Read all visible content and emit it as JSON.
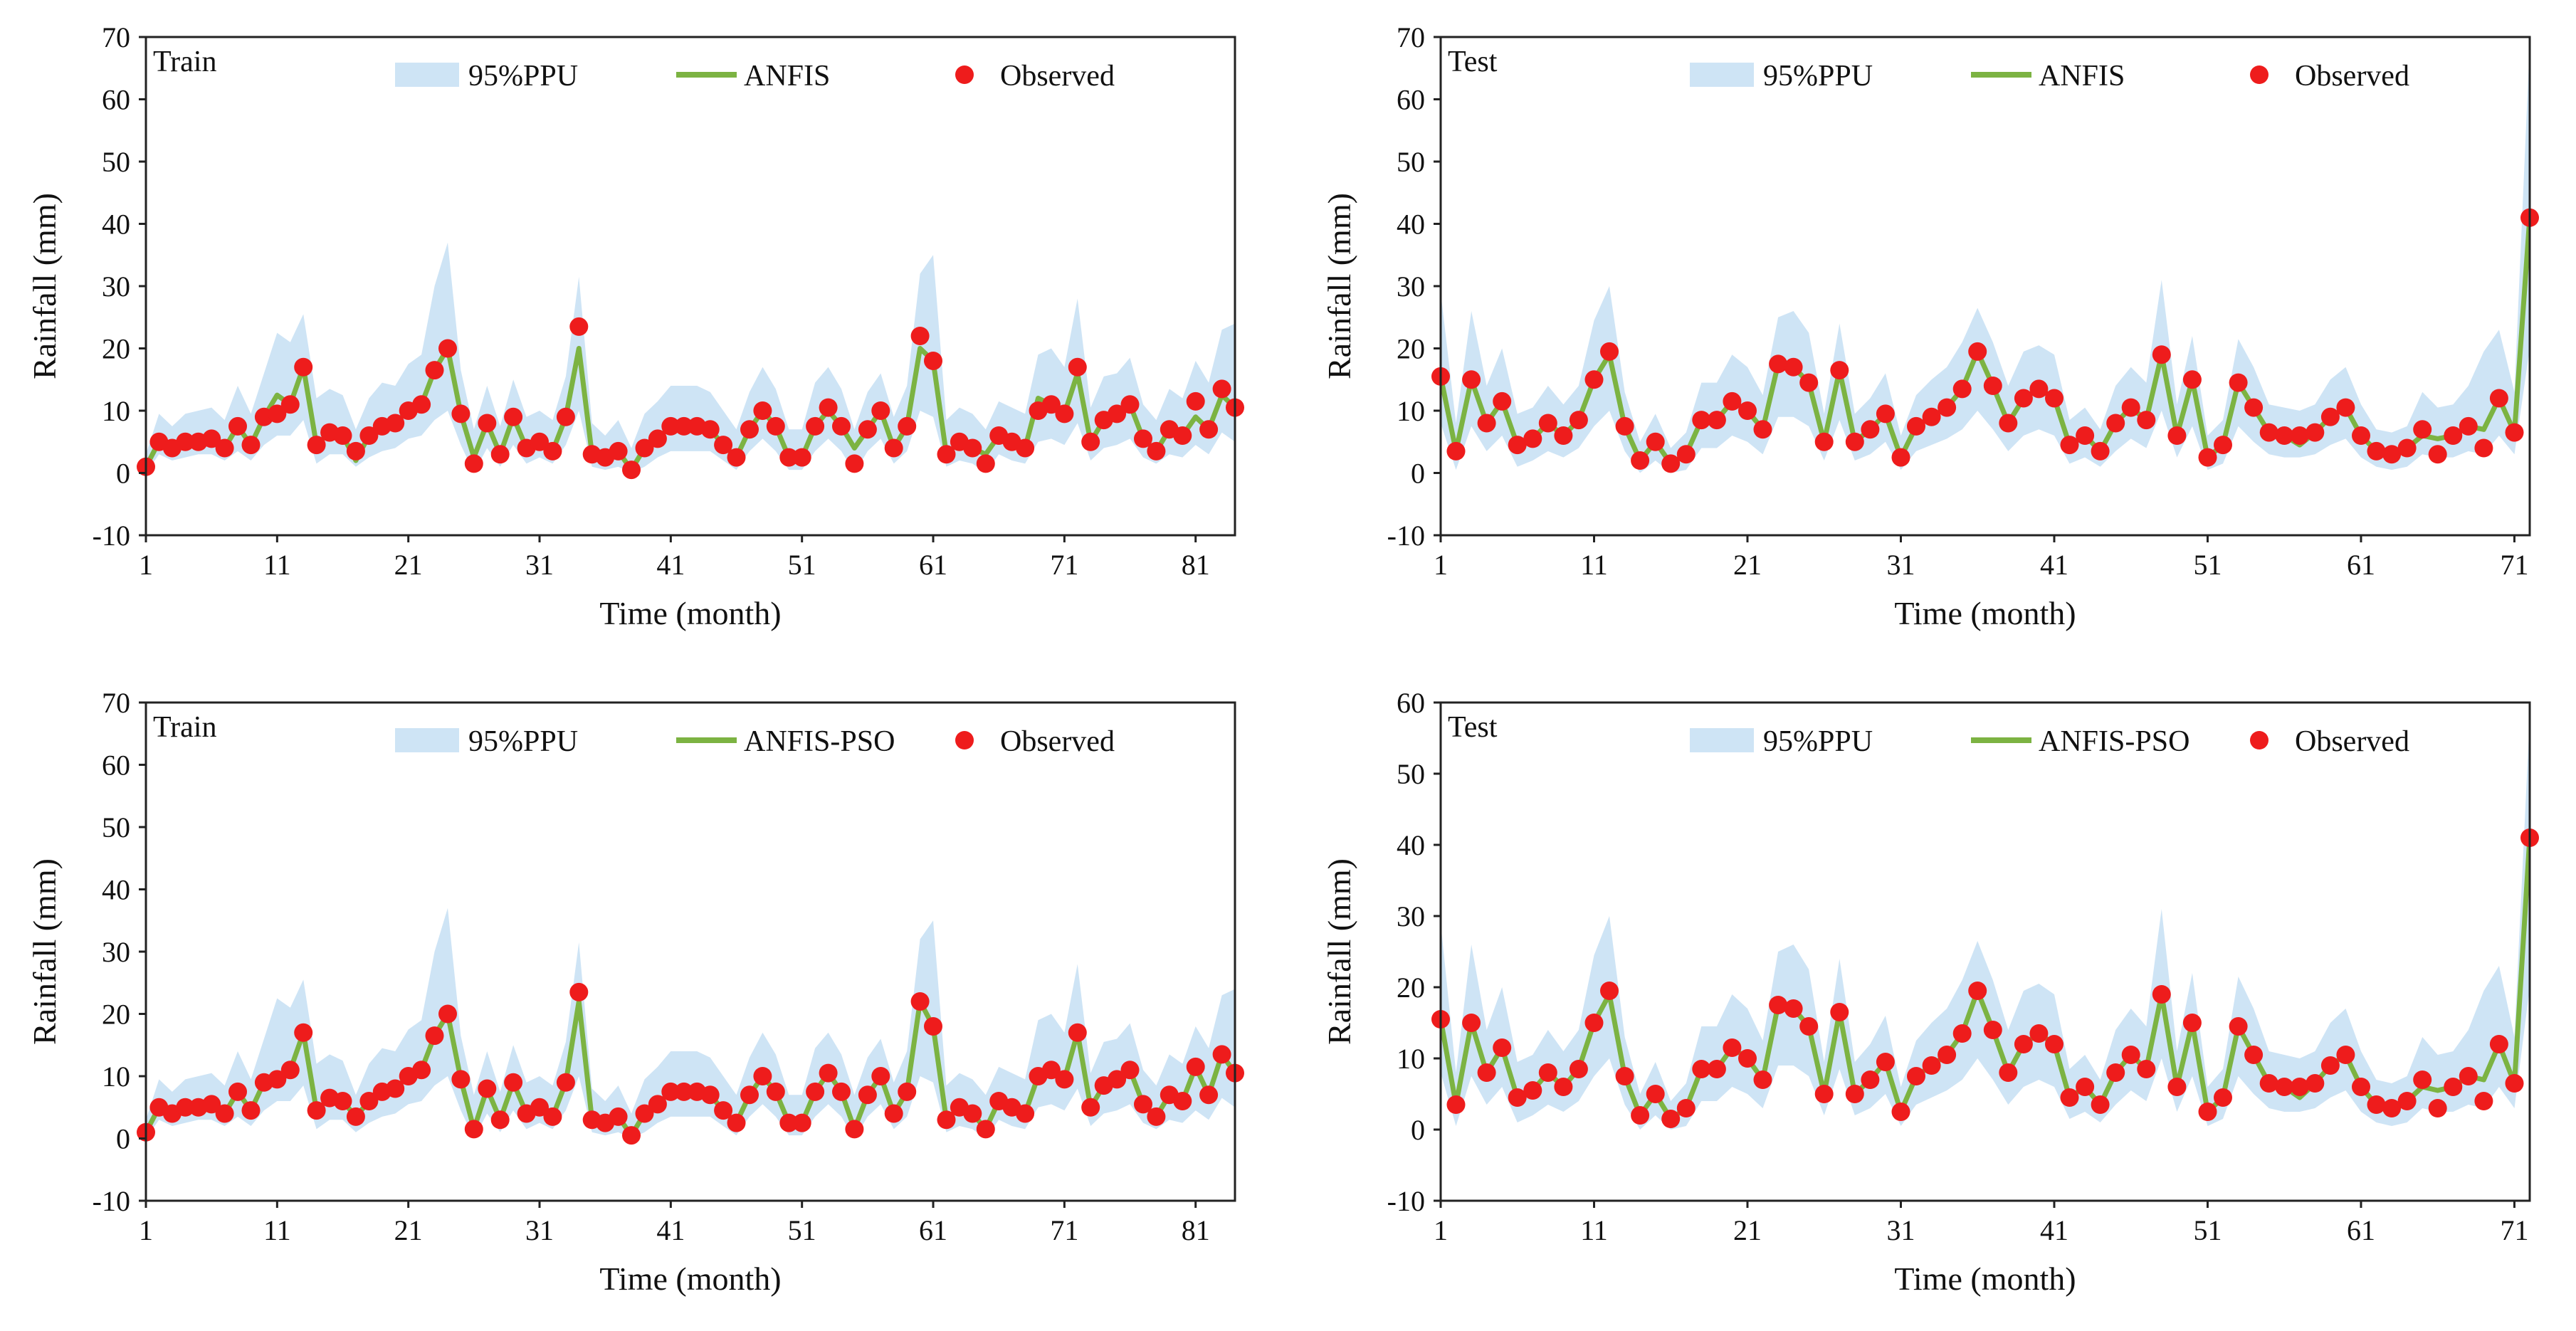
{
  "colors": {
    "band": "#c5dff3",
    "line": "#7cb342",
    "marker": "#ee1c1c",
    "frame": "#222222"
  },
  "chart_data": [
    {
      "type": "line",
      "panel_label": "Train",
      "xlabel": "Time (month)",
      "ylabel": "Rainfall (mm)",
      "ylim": [
        -10,
        70
      ],
      "yticks": [
        -10,
        0,
        10,
        20,
        30,
        40,
        50,
        60,
        70
      ],
      "xlim": [
        1,
        84
      ],
      "xticks": [
        1,
        11,
        21,
        31,
        41,
        51,
        61,
        71,
        81
      ],
      "legend": [
        "95%PPU",
        "ANFIS",
        "Observed"
      ],
      "legend_position": "top-center",
      "x_start": 1,
      "observed": [
        1,
        5,
        4,
        5,
        5,
        5.5,
        4,
        7.5,
        4.5,
        9,
        9.5,
        11,
        17,
        4.5,
        6.5,
        6,
        3.5,
        6,
        7.5,
        8,
        10,
        11,
        16.5,
        20,
        9.5,
        1.5,
        8,
        3,
        9,
        4,
        5,
        3.5,
        9,
        23.5,
        3,
        2.5,
        3.5,
        0.5,
        4,
        5.5,
        7.5,
        7.5,
        7.5,
        7,
        4.5,
        2.5,
        7,
        10,
        7.5,
        2.5,
        2.5,
        7.5,
        10.5,
        7.5,
        1.5,
        7,
        10,
        4,
        7.5,
        22,
        18,
        3,
        5,
        4,
        1.5,
        6,
        5,
        4,
        10,
        11,
        9.5,
        17,
        5,
        8.5,
        9.5,
        11,
        5.5,
        3.5,
        7,
        6,
        11.5,
        7,
        13.5,
        10.5
      ],
      "model": [
        1,
        5,
        4,
        5,
        5,
        5.5,
        4,
        7.5,
        4.5,
        9,
        12.5,
        11,
        17,
        4.5,
        6.5,
        6,
        2,
        6,
        7.5,
        8,
        10,
        11,
        16.5,
        20,
        9.5,
        2.5,
        8,
        3,
        9,
        4,
        5,
        3.5,
        9,
        20,
        3,
        2.5,
        3.5,
        0.5,
        4,
        5.5,
        7.5,
        7.5,
        7.5,
        7,
        4.5,
        2.5,
        7,
        10,
        7.5,
        2.5,
        2.5,
        7.5,
        10,
        7.5,
        4,
        7,
        10,
        4,
        7.5,
        20,
        18,
        3,
        5,
        4,
        3,
        6,
        5,
        4,
        12,
        11,
        9.5,
        16,
        5,
        8.5,
        9.5,
        11,
        5.5,
        3.5,
        7,
        6,
        9,
        7,
        12.5,
        10.5
      ],
      "ppu_lower": [
        0,
        3,
        2,
        2.5,
        3,
        3,
        2,
        3.5,
        2,
        4.5,
        6,
        6,
        8.5,
        1.5,
        3,
        3,
        1,
        2.5,
        3.5,
        4,
        5.5,
        6,
        8.5,
        10,
        4.5,
        0,
        4,
        1,
        4.5,
        1.5,
        2.5,
        1.5,
        4.5,
        10,
        1,
        0.5,
        1,
        0,
        1,
        2.5,
        3.5,
        3.5,
        3.5,
        3.5,
        2,
        0.5,
        3.5,
        5.5,
        3.5,
        0.5,
        0.5,
        3.5,
        5.5,
        3.5,
        0,
        3.5,
        5.5,
        1.5,
        3.5,
        10,
        9,
        1,
        2,
        1.5,
        0,
        3,
        2,
        1.5,
        5,
        5.5,
        4.5,
        8,
        2,
        4,
        4.5,
        5.5,
        2.5,
        1.5,
        3,
        2.5,
        4.5,
        3,
        6.5,
        5
      ],
      "ppu_upper": [
        3,
        9.5,
        7.5,
        9.5,
        10,
        10.5,
        8.5,
        14,
        9.5,
        16,
        22.5,
        21,
        25.5,
        12,
        13.5,
        12.5,
        7,
        12,
        14.5,
        14,
        17.5,
        19,
        30,
        37,
        16.5,
        7,
        14,
        7.5,
        15,
        9,
        10,
        8.5,
        15.5,
        31.5,
        8,
        6,
        8.5,
        4,
        9.5,
        11.5,
        14,
        14,
        14,
        13,
        10,
        7,
        13,
        17,
        13.5,
        7,
        7,
        14.5,
        17,
        13.5,
        7,
        13,
        16,
        9,
        14,
        32,
        35,
        8.5,
        10.5,
        9.5,
        7,
        11.5,
        10.5,
        9.5,
        19,
        20,
        17,
        28,
        10.5,
        15.5,
        16,
        18.5,
        11,
        8.5,
        13.5,
        12,
        18,
        14.5,
        23,
        24
      ]
    },
    {
      "type": "line",
      "panel_label": "Test",
      "xlabel": "Time (month)",
      "ylabel": "Rainfall (mm)",
      "ylim": [
        -10,
        70
      ],
      "yticks": [
        -10,
        0,
        10,
        20,
        30,
        40,
        50,
        60,
        70
      ],
      "xlim": [
        1,
        72
      ],
      "xticks": [
        1,
        11,
        21,
        31,
        41,
        51,
        61,
        71
      ],
      "legend": [
        "95%PPU",
        "ANFIS",
        "Observed"
      ],
      "legend_position": "top-center",
      "x_start": 1,
      "observed": [
        15.5,
        3.5,
        15,
        8,
        11.5,
        4.5,
        5.5,
        8,
        6,
        8.5,
        15,
        19.5,
        7.5,
        2,
        5,
        1.5,
        3,
        8.5,
        8.5,
        11.5,
        10,
        7,
        17.5,
        17,
        14.5,
        5,
        16.5,
        5,
        7,
        9.5,
        2.5,
        7.5,
        9,
        10.5,
        13.5,
        19.5,
        14,
        8,
        12,
        13.5,
        12,
        4.5,
        6,
        3.5,
        8,
        10.5,
        8.5,
        19,
        6,
        15,
        2.5,
        4.5,
        14.5,
        10.5,
        6.5,
        6,
        6,
        6.5,
        9,
        10.5,
        6,
        3.5,
        3,
        4,
        7,
        3,
        6,
        7.5,
        4,
        12,
        6.5,
        41
      ],
      "model": [
        15.5,
        3.5,
        15,
        8,
        11.5,
        4.5,
        5.5,
        8,
        6,
        8.5,
        15,
        19,
        7.5,
        2,
        5,
        1.5,
        3,
        8.5,
        8.5,
        11.5,
        10,
        7,
        17.5,
        17,
        14.5,
        5,
        16.5,
        5,
        7,
        9.5,
        2.5,
        7.5,
        9,
        10.5,
        13.5,
        19.5,
        14,
        8,
        12,
        13.5,
        12,
        4.5,
        6,
        3.5,
        8,
        10.5,
        8.5,
        19,
        6,
        15,
        2.5,
        4.5,
        14.5,
        10.5,
        6.5,
        6,
        4.5,
        6.5,
        9,
        10.5,
        6,
        3.5,
        3,
        4,
        6,
        5.5,
        6,
        7.5,
        7,
        12,
        6.5,
        41
      ],
      "ppu_lower": [
        8,
        0.5,
        7.5,
        3.5,
        6,
        1,
        2,
        3.5,
        2.5,
        4,
        7.5,
        10,
        3.5,
        0,
        2,
        0,
        0.5,
        4,
        4,
        6,
        5,
        3,
        9,
        9,
        7.5,
        2,
        8.5,
        2,
        3,
        5,
        0.5,
        3.5,
        4.5,
        5.5,
        7,
        10,
        7,
        3.5,
        6,
        7,
        6,
        1.5,
        2.5,
        1,
        3.5,
        5.5,
        4,
        10,
        2.5,
        7.5,
        0.5,
        1.5,
        7.5,
        5,
        3,
        2.5,
        2.5,
        3,
        4.5,
        5.5,
        2.5,
        1,
        0.5,
        1,
        3,
        2.5,
        2.5,
        3.5,
        3,
        6,
        3,
        20
      ],
      "ppu_upper": [
        29,
        8,
        26,
        14,
        20,
        9.5,
        10.5,
        14,
        11,
        14,
        24.5,
        30,
        13,
        5,
        9.5,
        4,
        6.5,
        14.5,
        14.5,
        19,
        17,
        12.5,
        25,
        26,
        22.5,
        9.5,
        24,
        9.5,
        12,
        16,
        6,
        12.5,
        15,
        17,
        21,
        26.5,
        21,
        14,
        19.5,
        20.5,
        19,
        8.5,
        10.5,
        7,
        14,
        17,
        14.5,
        31,
        11,
        22,
        6,
        8.5,
        21.5,
        17,
        11,
        10.5,
        10,
        11,
        15,
        17,
        11,
        7,
        6.5,
        7.5,
        13,
        10.5,
        11,
        14,
        19.5,
        23,
        13,
        69
      ]
    },
    {
      "type": "line",
      "panel_label": "Train",
      "xlabel": "Time (month)",
      "ylabel": "Rainfall (mm)",
      "ylim": [
        -10,
        70
      ],
      "yticks": [
        -10,
        0,
        10,
        20,
        30,
        40,
        50,
        60,
        70
      ],
      "xlim": [
        1,
        84
      ],
      "xticks": [
        1,
        11,
        21,
        31,
        41,
        51,
        61,
        71,
        81
      ],
      "legend": [
        "95%PPU",
        "ANFIS-PSO",
        "Observed"
      ],
      "legend_position": "top-center",
      "x_start": 1,
      "observed": [
        1,
        5,
        4,
        5,
        5,
        5.5,
        4,
        7.5,
        4.5,
        9,
        9.5,
        11,
        17,
        4.5,
        6.5,
        6,
        3.5,
        6,
        7.5,
        8,
        10,
        11,
        16.5,
        20,
        9.5,
        1.5,
        8,
        3,
        9,
        4,
        5,
        3.5,
        9,
        23.5,
        3,
        2.5,
        3.5,
        0.5,
        4,
        5.5,
        7.5,
        7.5,
        7.5,
        7,
        4.5,
        2.5,
        7,
        10,
        7.5,
        2.5,
        2.5,
        7.5,
        10.5,
        7.5,
        1.5,
        7,
        10,
        4,
        7.5,
        22,
        18,
        3,
        5,
        4,
        1.5,
        6,
        5,
        4,
        10,
        11,
        9.5,
        17,
        5,
        8.5,
        9.5,
        11,
        5.5,
        3.5,
        7,
        6,
        11.5,
        7,
        13.5,
        10.5
      ],
      "model": [
        1,
        5,
        4,
        5,
        5,
        5.5,
        4,
        7.5,
        4.5,
        9,
        9.5,
        11,
        17,
        4.5,
        6.5,
        6,
        3.5,
        6,
        7.5,
        8,
        10,
        11,
        16.5,
        20,
        9.5,
        1.5,
        8,
        3,
        9,
        4,
        5,
        3.5,
        9,
        22,
        3,
        2.5,
        3.5,
        0.5,
        4,
        5.5,
        7.5,
        7.5,
        7.5,
        7,
        4.5,
        2.5,
        7,
        10,
        7.5,
        2.5,
        2.5,
        7.5,
        10.5,
        7.5,
        1.5,
        7,
        10,
        4,
        7.5,
        22,
        18,
        3,
        5,
        4,
        1.5,
        6,
        5,
        4,
        10,
        11,
        9.5,
        17,
        5,
        8.5,
        9.5,
        11,
        5.5,
        3.5,
        7,
        6,
        11.5,
        7,
        13.5,
        10.5
      ],
      "ppu_lower": [
        0,
        3,
        2,
        2.5,
        3,
        3,
        2,
        3.5,
        2,
        4.5,
        6,
        6,
        8.5,
        1.5,
        3,
        3,
        1,
        2.5,
        3.5,
        4,
        5.5,
        6,
        8.5,
        10,
        4.5,
        0,
        4,
        1,
        4.5,
        1.5,
        2.5,
        1.5,
        4.5,
        10,
        1,
        0.5,
        1,
        0,
        1,
        2.5,
        3.5,
        3.5,
        3.5,
        3.5,
        2,
        0.5,
        3.5,
        5.5,
        3.5,
        0.5,
        0.5,
        3.5,
        5.5,
        3.5,
        0,
        3.5,
        5.5,
        1.5,
        3.5,
        10,
        9,
        1,
        2,
        1.5,
        0,
        3,
        2,
        1.5,
        5,
        5.5,
        4.5,
        8,
        2,
        4,
        4.5,
        5.5,
        2.5,
        1.5,
        3,
        2.5,
        4.5,
        3,
        6.5,
        5
      ],
      "ppu_upper": [
        3,
        9.5,
        7.5,
        9.5,
        10,
        10.5,
        8.5,
        14,
        9.5,
        16,
        22.5,
        21,
        25.5,
        12,
        13.5,
        12.5,
        7,
        12,
        14.5,
        14,
        17.5,
        19,
        30,
        37,
        16.5,
        7,
        14,
        7.5,
        15,
        9,
        10,
        8.5,
        15.5,
        31.5,
        8,
        6,
        8.5,
        4,
        9.5,
        11.5,
        14,
        14,
        14,
        13,
        10,
        7,
        13,
        17,
        13.5,
        7,
        7,
        14.5,
        17,
        13.5,
        7,
        13,
        16,
        9,
        14,
        32,
        35,
        8.5,
        10.5,
        9.5,
        7,
        11.5,
        10.5,
        9.5,
        19,
        20,
        17,
        28,
        10.5,
        15.5,
        16,
        18.5,
        11,
        8.5,
        13.5,
        12,
        18,
        14.5,
        23,
        24
      ]
    },
    {
      "type": "line",
      "panel_label": "Test",
      "xlabel": "Time (month)",
      "ylabel": "Rainfall (mm)",
      "ylim": [
        -10,
        60
      ],
      "yticks": [
        -10,
        0,
        10,
        20,
        30,
        40,
        50,
        60
      ],
      "xlim": [
        1,
        72
      ],
      "xticks": [
        1,
        11,
        21,
        31,
        41,
        51,
        61,
        71
      ],
      "legend": [
        "95%PPU",
        "ANFIS-PSO",
        "Observed"
      ],
      "legend_position": "top-center",
      "x_start": 1,
      "observed": [
        15.5,
        3.5,
        15,
        8,
        11.5,
        4.5,
        5.5,
        8,
        6,
        8.5,
        15,
        19.5,
        7.5,
        2,
        5,
        1.5,
        3,
        8.5,
        8.5,
        11.5,
        10,
        7,
        17.5,
        17,
        14.5,
        5,
        16.5,
        5,
        7,
        9.5,
        2.5,
        7.5,
        9,
        10.5,
        13.5,
        19.5,
        14,
        8,
        12,
        13.5,
        12,
        4.5,
        6,
        3.5,
        8,
        10.5,
        8.5,
        19,
        6,
        15,
        2.5,
        4.5,
        14.5,
        10.5,
        6.5,
        6,
        6,
        6.5,
        9,
        10.5,
        6,
        3.5,
        3,
        4,
        7,
        3,
        6,
        7.5,
        4,
        12,
        6.5,
        41
      ],
      "model": [
        15.5,
        3.5,
        15,
        8,
        11.5,
        4.5,
        5.5,
        8,
        6,
        8.5,
        15,
        19,
        7.5,
        2,
        5,
        1.5,
        3,
        8.5,
        8.5,
        11.5,
        10,
        7,
        17.5,
        17,
        14.5,
        5,
        16.5,
        5,
        7,
        9.5,
        2.5,
        7.5,
        9,
        10.5,
        13.5,
        19.5,
        14,
        8,
        12,
        13.5,
        12,
        4.5,
        6,
        3.5,
        8,
        10.5,
        8.5,
        19,
        6,
        15,
        2.5,
        4.5,
        14.5,
        10.5,
        6.5,
        6,
        4.5,
        6.5,
        9,
        10.5,
        6,
        3.5,
        3,
        4,
        6,
        5.5,
        6,
        7.5,
        7,
        12,
        6.5,
        41
      ],
      "ppu_lower": [
        8,
        0.5,
        7.5,
        3.5,
        6,
        1,
        2,
        3.5,
        2.5,
        4,
        7.5,
        10,
        3.5,
        0,
        2,
        0,
        0.5,
        4,
        4,
        6,
        5,
        3,
        9,
        9,
        7.5,
        2,
        8.5,
        2,
        3,
        5,
        0.5,
        3.5,
        4.5,
        5.5,
        7,
        10,
        7,
        3.5,
        6,
        7,
        6,
        1.5,
        2.5,
        1,
        3.5,
        5.5,
        4,
        10,
        2.5,
        7.5,
        0.5,
        1.5,
        7.5,
        5,
        3,
        2.5,
        2.5,
        3,
        4.5,
        5.5,
        2.5,
        1,
        0.5,
        1,
        3,
        2.5,
        2.5,
        3.5,
        3,
        6,
        3,
        20
      ],
      "ppu_upper": [
        29,
        8,
        26,
        14,
        20,
        9.5,
        10.5,
        14,
        11,
        14,
        24.5,
        30,
        13,
        5,
        9.5,
        4,
        6.5,
        14.5,
        14.5,
        19,
        17,
        12.5,
        25,
        26,
        22.5,
        9.5,
        24,
        9.5,
        12,
        16,
        6,
        12.5,
        15,
        17,
        21,
        26.5,
        21,
        14,
        19.5,
        20.5,
        19,
        8.5,
        10.5,
        7,
        14,
        17,
        14.5,
        31,
        11,
        22,
        6,
        8.5,
        21.5,
        17,
        11,
        10.5,
        10,
        11,
        15,
        17,
        11,
        7,
        6.5,
        7.5,
        13,
        10.5,
        11,
        14,
        19.5,
        23,
        13,
        58
      ]
    }
  ]
}
